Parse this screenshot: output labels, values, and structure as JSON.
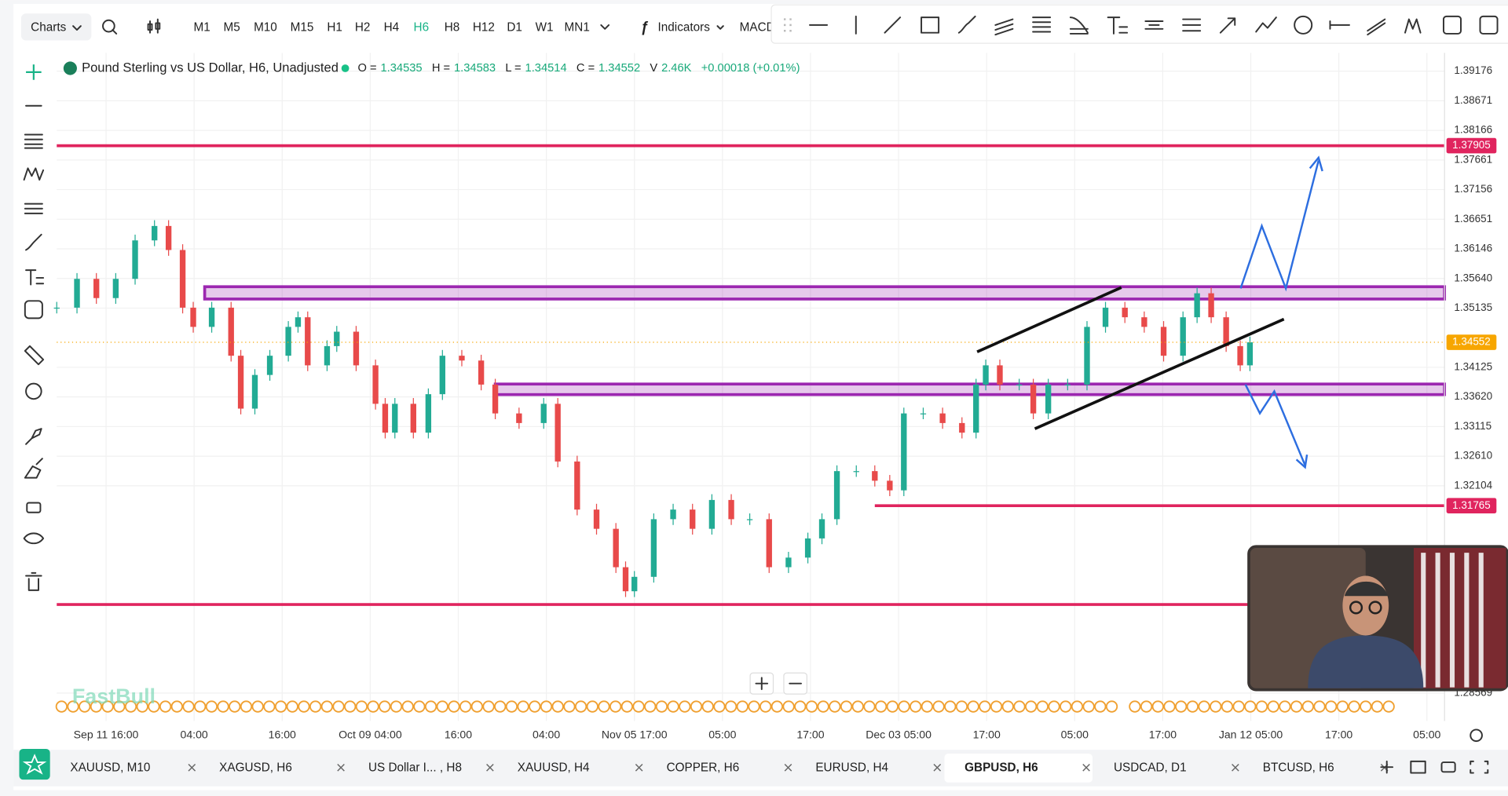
{
  "toolbar": {
    "charts": "Charts",
    "timeframes": [
      "M1",
      "M5",
      "M10",
      "M15",
      "H1",
      "H2",
      "H4",
      "H6",
      "H8",
      "H12",
      "D1",
      "W1",
      "MN1"
    ],
    "active_timeframe": 7,
    "indicators": "Indicators",
    "macd": "MACD"
  },
  "legend": {
    "title": "Pound Sterling vs US Dollar, H6, Unadjusted",
    "fields": [
      {
        "name": "O =",
        "value": "1.34535"
      },
      {
        "name": "H =",
        "value": "1.34583"
      },
      {
        "name": "L =",
        "value": "1.34514"
      },
      {
        "name": "C =",
        "value": "1.34552"
      },
      {
        "name": "V",
        "value": "2.46K"
      }
    ],
    "change": "+0.00018 (+0.01%)"
  },
  "chart": {
    "type": "candlestick",
    "ylim": [
      1.28569,
      1.39176
    ],
    "yticks": [
      1.39176,
      1.38671,
      1.38166,
      1.37661,
      1.37156,
      1.36651,
      1.36146,
      {
        "value": 1.3564,
        "label": "1.35640"
      },
      1.35135,
      1.34125,
      {
        "value": 1.3362,
        "label": "1.33620"
      },
      1.33115,
      {
        "value": 1.3261,
        "label": "1.32610"
      },
      1.32104,
      1.28569
    ],
    "xlim": [
      -0.56,
      15.2
    ],
    "xticks": [
      {
        "value": 0,
        "label": "Sep 11 16:00"
      },
      {
        "value": 1,
        "label": "04:00"
      },
      {
        "value": 2,
        "label": "16:00"
      },
      {
        "value": 3,
        "label": "Oct 09 04:00"
      },
      {
        "value": 4,
        "label": "16:00"
      },
      {
        "value": 5,
        "label": "04:00"
      },
      {
        "value": 6,
        "label": "Nov 05 17:00"
      },
      {
        "value": 7,
        "label": "05:00"
      },
      {
        "value": 8,
        "label": "17:00"
      },
      {
        "value": 9,
        "label": "Dec 03 05:00"
      },
      {
        "value": 10,
        "label": "17:00"
      },
      {
        "value": 11,
        "label": "05:00"
      },
      {
        "value": 12,
        "label": "17:00"
      },
      {
        "value": 13,
        "label": "Jan 12 05:00"
      },
      {
        "value": 14,
        "label": "17:00"
      },
      {
        "value": 15,
        "label": "05:00"
      }
    ],
    "x": [
      -0.56,
      -0.33,
      -0.11,
      0.11,
      0.33,
      0.55,
      0.71,
      0.87,
      0.99,
      1.2,
      1.42,
      1.53,
      1.69,
      1.86,
      2.07,
      2.18,
      2.29,
      2.51,
      2.62,
      2.84,
      3.06,
      3.17,
      3.28,
      3.49,
      3.66,
      3.82,
      4.04,
      4.26,
      4.42,
      4.69,
      4.97,
      5.13,
      5.35,
      5.57,
      5.79,
      5.9,
      6.0,
      6.22,
      6.44,
      6.66,
      6.88,
      7.1,
      7.31,
      7.53,
      7.75,
      7.97,
      8.13,
      8.3,
      8.52,
      8.73,
      8.9,
      9.06,
      9.28,
      9.5,
      9.72,
      9.88,
      9.99,
      10.15,
      10.37,
      10.53,
      10.7,
      10.92,
      11.14,
      11.35,
      11.57,
      11.79,
      12.01,
      12.23,
      12.39,
      12.55,
      12.72,
      12.88,
      12.99
    ],
    "close": [
      1.35143,
      1.35634,
      1.35306,
      1.35634,
      1.3629,
      1.36536,
      1.36126,
      1.35143,
      1.34815,
      1.35143,
      1.34323,
      1.33421,
      1.33995,
      1.34323,
      1.34815,
      1.34979,
      1.34159,
      1.34487,
      1.34733,
      1.34159,
      1.33503,
      1.33011,
      1.33503,
      1.33011,
      1.33667,
      1.34323,
      1.34241,
      1.33831,
      1.33339,
      1.33175,
      1.33503,
      1.32519,
      1.31699,
      1.31371,
      1.30716,
      1.30306,
      1.30552,
      1.31535,
      1.31699,
      1.31371,
      1.31863,
      1.31535,
      1.31535,
      1.30716,
      1.3088,
      1.31207,
      1.31535,
      1.32355,
      1.32355,
      1.32191,
      1.32027,
      1.33339,
      1.33339,
      1.33175,
      1.33011,
      1.33831,
      1.34159,
      1.33831,
      1.33831,
      1.33339,
      1.33831,
      1.33831,
      1.34815,
      1.35143,
      1.34979,
      1.34815,
      1.34323,
      1.34979,
      1.35388,
      1.34979,
      1.34487,
      1.34159,
      1.34552
    ],
    "up_color": "#22ab94",
    "down_color": "#e84a4a",
    "levels": [
      {
        "price": 1.37905,
        "start": -0.56,
        "label": "1.37905"
      },
      {
        "price": 1.31765,
        "start": 8.73,
        "label": "1.31765"
      },
      {
        "price": 1.3008,
        "start": -0.56
      }
    ],
    "level_color": "#e0245e",
    "zones": [
      {
        "low": 1.3529,
        "high": 1.355,
        "start": 1.12
      },
      {
        "low": 1.3366,
        "high": 1.3384,
        "start": 4.42
      }
    ],
    "zone_color": "#9c27b0",
    "last_price": {
      "price": 1.34552,
      "label": "1.34552",
      "color": "#f7a600"
    },
    "grid": true
  },
  "watermark": "FastBull",
  "tabs": [
    "XAUUSD, M10",
    "XAGUSD, H6",
    "US Dollar I... , H8",
    "XAUUSD, H4",
    "COPPER, H6",
    "EURUSD, H4",
    "GBPUSD, H6",
    "USDCAD, D1",
    "BTCUSD, H6"
  ],
  "active_tab": 6
}
